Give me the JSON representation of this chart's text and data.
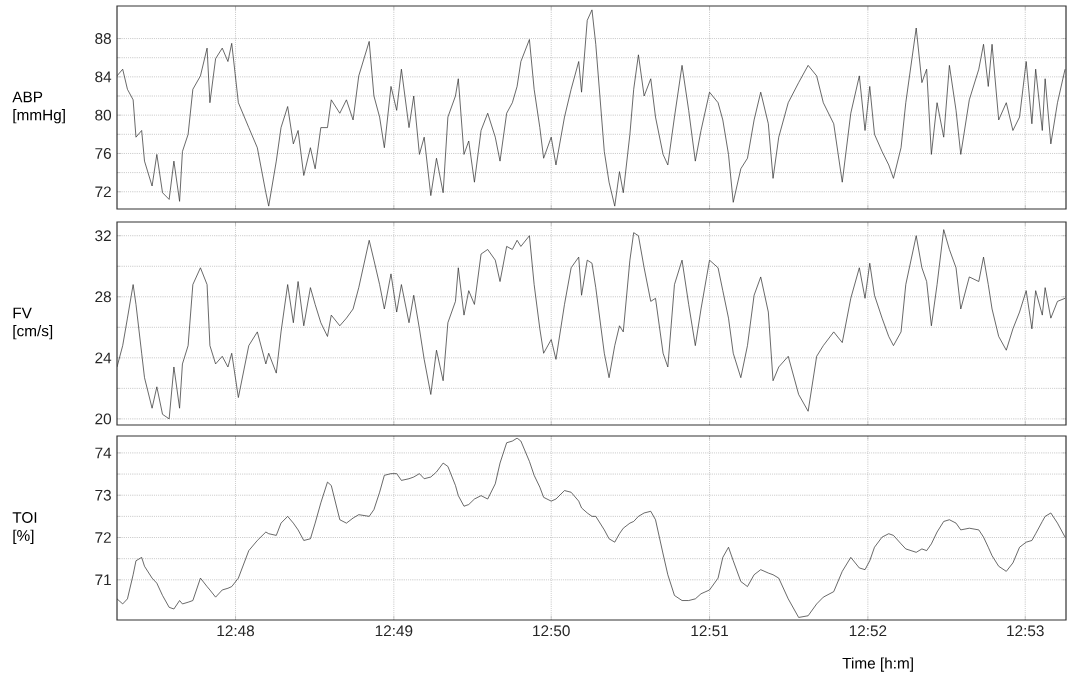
{
  "chart_data": [
    {
      "type": "line",
      "ylabel": "ABP [mmHg]",
      "xlim": [
        12.7875,
        12.8876
      ],
      "ylim": [
        70.2,
        91.4
      ],
      "yticks": [
        72,
        76,
        80,
        84,
        88
      ],
      "xticks": [
        {
          "value": 12.8,
          "label": null
        },
        {
          "value": 12.8167,
          "label": null
        },
        {
          "value": 12.8333,
          "label": null
        },
        {
          "value": 12.85,
          "label": null
        },
        {
          "value": 12.8667,
          "label": null
        },
        {
          "value": 12.8833,
          "label": null
        }
      ],
      "tick_labels": "y",
      "grid": true,
      "x": [
        12.7875,
        12.7881,
        12.7886,
        12.7892,
        12.7895,
        12.7901,
        12.7904,
        12.7912,
        12.7917,
        12.7923,
        12.793,
        12.7935,
        12.7941,
        12.7944,
        12.795,
        12.7955,
        12.7963,
        12.797,
        12.7973,
        12.7979,
        12.7986,
        12.7992,
        12.7996,
        12.8003,
        12.8014,
        12.8023,
        12.8032,
        12.8035,
        12.8043,
        12.8048,
        12.8055,
        12.8061,
        12.8066,
        12.8072,
        12.8079,
        12.8084,
        12.809,
        12.8097,
        12.8101,
        12.811,
        12.8117,
        12.8124,
        12.813,
        12.8141,
        12.8146,
        12.8152,
        12.8157,
        12.8164,
        12.817,
        12.8175,
        12.8183,
        12.8188,
        12.8194,
        12.8199,
        12.8206,
        12.8212,
        12.8219,
        12.8224,
        12.8232,
        12.8235,
        12.8241,
        12.8246,
        12.8252,
        12.8259,
        12.8266,
        12.8274,
        12.8279,
        12.8286,
        12.8292,
        12.8297,
        12.8301,
        12.831,
        12.8315,
        12.8321,
        12.8325,
        12.8333,
        12.8338,
        12.8347,
        12.8354,
        12.8362,
        12.8365,
        12.8371,
        12.8376,
        12.838,
        12.8389,
        12.8394,
        12.84,
        12.8405,
        12.8409,
        12.8416,
        12.842,
        12.8425,
        12.8431,
        12.8438,
        12.8443,
        12.8451,
        12.8456,
        12.8463,
        12.8471,
        12.8478,
        12.8485,
        12.8491,
        12.85,
        12.8509,
        12.8514,
        12.852,
        12.8525,
        12.8533,
        12.854,
        12.8547,
        12.8554,
        12.8562,
        12.8567,
        12.8573,
        12.8583,
        12.8594,
        12.8604,
        12.8613,
        12.862,
        12.8631,
        12.864,
        12.8649,
        12.8658,
        12.8664,
        12.8669,
        12.8674,
        12.8682,
        12.8689,
        12.8694,
        12.8702,
        12.8707,
        12.8718,
        12.8724,
        12.8729,
        12.8734,
        12.874,
        12.8747,
        12.8753,
        12.876,
        12.8765,
        12.8774,
        12.8784,
        12.8789,
        12.8794,
        12.8798,
        12.8805,
        12.8813,
        12.882,
        12.8827,
        12.8834,
        12.884,
        12.8844,
        12.8851,
        12.8854,
        12.886,
        12.8867,
        12.8875
      ],
      "series": [
        {
          "color": "#333333",
          "values": [
            84.1,
            84.8,
            82.7,
            81.6,
            77.7,
            78.4,
            75.2,
            72.6,
            75.9,
            71.9,
            71.2,
            75.2,
            71,
            76.2,
            78,
            82.7,
            84.1,
            87,
            81.3,
            85.9,
            87,
            85.6,
            87.5,
            81.3,
            78.7,
            76.6,
            71.9,
            70.5,
            75.2,
            78.7,
            80.9,
            77,
            78.4,
            73.7,
            76.6,
            74.4,
            78.7,
            78.7,
            81.6,
            80.2,
            81.6,
            79.5,
            84.1,
            87.7,
            82,
            79.8,
            76.6,
            83,
            80.5,
            84.8,
            78.7,
            82,
            75.9,
            77.7,
            71.6,
            75.5,
            71.9,
            79.8,
            82,
            83.8,
            75.9,
            77.3,
            73,
            78.4,
            80.2,
            77.7,
            75.2,
            80.2,
            81.3,
            83,
            85.6,
            87.9,
            82.7,
            78.7,
            75.5,
            77.7,
            74.8,
            79.8,
            82.7,
            85.6,
            82.4,
            89.9,
            91,
            87.4,
            76.2,
            73,
            70.5,
            74.1,
            71.9,
            78,
            82.7,
            86.3,
            82,
            83.8,
            79.8,
            75.9,
            74.8,
            79.8,
            85.2,
            80.5,
            75.2,
            78.4,
            82.4,
            81.3,
            79.5,
            75.9,
            70.9,
            74.4,
            75.5,
            79.5,
            82.4,
            79.1,
            73.4,
            77.7,
            81.3,
            83.4,
            85.2,
            84.1,
            81.3,
            79.1,
            73,
            80.2,
            84.1,
            78.4,
            83,
            78,
            76.2,
            74.8,
            73.4,
            76.6,
            81.3,
            89.1,
            83.4,
            84.8,
            75.9,
            81.3,
            77.7,
            85.2,
            80.5,
            75.9,
            81.6,
            84.8,
            87.4,
            83,
            87.4,
            79.5,
            81.3,
            78.4,
            79.8,
            85.6,
            79.1,
            84.8,
            78.4,
            83.8,
            77,
            81.3,
            84.8
          ]
        }
      ]
    },
    {
      "type": "line",
      "ylabel": "FV [cm/s]",
      "xlim": [
        12.7875,
        12.8876
      ],
      "ylim": [
        19.6,
        32.9
      ],
      "yticks": [
        20,
        24,
        28,
        32
      ],
      "xticks": [
        {
          "value": 12.8,
          "label": null
        },
        {
          "value": 12.8167,
          "label": null
        },
        {
          "value": 12.8333,
          "label": null
        },
        {
          "value": 12.85,
          "label": null
        },
        {
          "value": 12.8667,
          "label": null
        },
        {
          "value": 12.8833,
          "label": null
        }
      ],
      "tick_labels": "y",
      "grid": true,
      "x": [
        12.7875,
        12.7881,
        12.7886,
        12.7892,
        12.7895,
        12.7901,
        12.7904,
        12.7912,
        12.7917,
        12.7923,
        12.793,
        12.7935,
        12.7941,
        12.7944,
        12.795,
        12.7955,
        12.7963,
        12.797,
        12.7973,
        12.7979,
        12.7986,
        12.7992,
        12.7996,
        12.8003,
        12.8014,
        12.8023,
        12.8032,
        12.8035,
        12.8043,
        12.8048,
        12.8055,
        12.8061,
        12.8066,
        12.8072,
        12.8079,
        12.8084,
        12.809,
        12.8097,
        12.8101,
        12.811,
        12.8117,
        12.8124,
        12.813,
        12.8141,
        12.8146,
        12.8152,
        12.8157,
        12.8164,
        12.817,
        12.8175,
        12.8183,
        12.8188,
        12.8194,
        12.8199,
        12.8206,
        12.8212,
        12.8219,
        12.8224,
        12.8232,
        12.8235,
        12.8241,
        12.8246,
        12.8252,
        12.8259,
        12.8266,
        12.8274,
        12.8279,
        12.8286,
        12.8292,
        12.8297,
        12.8301,
        12.831,
        12.8315,
        12.8321,
        12.8325,
        12.8333,
        12.8338,
        12.8347,
        12.8354,
        12.8362,
        12.8365,
        12.8371,
        12.8376,
        12.838,
        12.8389,
        12.8394,
        12.84,
        12.8405,
        12.8409,
        12.8416,
        12.842,
        12.8425,
        12.8431,
        12.8438,
        12.8443,
        12.8451,
        12.8456,
        12.8463,
        12.8471,
        12.8478,
        12.8485,
        12.8491,
        12.85,
        12.8509,
        12.8514,
        12.852,
        12.8525,
        12.8533,
        12.854,
        12.8547,
        12.8554,
        12.8562,
        12.8567,
        12.8573,
        12.8583,
        12.8594,
        12.8604,
        12.8613,
        12.862,
        12.8631,
        12.864,
        12.8649,
        12.8658,
        12.8664,
        12.8669,
        12.8674,
        12.8682,
        12.8689,
        12.8694,
        12.8702,
        12.8707,
        12.8718,
        12.8724,
        12.8729,
        12.8734,
        12.874,
        12.8747,
        12.8753,
        12.876,
        12.8765,
        12.8774,
        12.8784,
        12.8789,
        12.8794,
        12.8798,
        12.8805,
        12.8813,
        12.882,
        12.8827,
        12.8834,
        12.884,
        12.8844,
        12.8851,
        12.8854,
        12.886,
        12.8867,
        12.8875
      ],
      "series": [
        {
          "color": "#333333",
          "values": [
            23.4,
            24.8,
            26.6,
            28.8,
            27.5,
            24.3,
            22.7,
            20.7,
            22.1,
            20.3,
            20.0,
            23.4,
            20.7,
            23.6,
            24.8,
            28.8,
            29.9,
            28.8,
            24.8,
            23.6,
            24.1,
            23.4,
            24.3,
            21.4,
            24.8,
            25.7,
            23.6,
            24.3,
            23,
            25.7,
            28.8,
            26.3,
            29,
            26.1,
            28.6,
            27.5,
            26.3,
            25.4,
            26.8,
            26.1,
            26.6,
            27.2,
            28.6,
            31.7,
            30.4,
            28.8,
            27.2,
            29.5,
            27,
            28.8,
            26.3,
            28.1,
            25.9,
            23.9,
            21.6,
            24.5,
            22.5,
            26.3,
            27.7,
            29.9,
            26.8,
            28.4,
            27.5,
            30.8,
            31.1,
            30.4,
            29,
            31.3,
            31.1,
            31.7,
            31.3,
            32,
            28.8,
            25.9,
            24.3,
            25.2,
            23.9,
            27.5,
            29.9,
            30.6,
            28.1,
            30.4,
            30.2,
            28.6,
            24.3,
            22.7,
            24.8,
            26.1,
            25.7,
            30.4,
            32.2,
            32,
            29.9,
            27.7,
            27.9,
            24.3,
            23.4,
            28.8,
            30.4,
            27.5,
            24.8,
            27.2,
            30.4,
            29.9,
            28.4,
            26.6,
            24.3,
            22.7,
            24.8,
            28.1,
            29.3,
            27,
            22.5,
            23.4,
            24.1,
            21.6,
            20.5,
            24.1,
            24.8,
            25.7,
            25,
            27.9,
            29.9,
            27.9,
            30.2,
            28.1,
            26.6,
            25.4,
            24.8,
            25.7,
            28.8,
            32,
            29.9,
            29,
            26.1,
            28.8,
            32.4,
            31.1,
            29.9,
            27.2,
            29.3,
            29,
            30.6,
            28.8,
            27.2,
            25.4,
            24.5,
            25.9,
            27,
            28.4,
            25.9,
            28.4,
            26.8,
            28.6,
            26.6,
            27.7,
            27.9
          ]
        }
      ]
    },
    {
      "type": "line",
      "ylabel": "TOI [%]",
      "xlabel": "Time [h:m]",
      "xlim": [
        12.7875,
        12.8876
      ],
      "ylim": [
        70.05,
        74.4
      ],
      "yticks": [
        71,
        72,
        73,
        74
      ],
      "xticks": [
        {
          "value": 12.8,
          "label": "12:48"
        },
        {
          "value": 12.8167,
          "label": "12:49"
        },
        {
          "value": 12.8333,
          "label": "12:50"
        },
        {
          "value": 12.85,
          "label": "12:51"
        },
        {
          "value": 12.8667,
          "label": "12:52"
        },
        {
          "value": 12.8833,
          "label": "12:53"
        }
      ],
      "grid": true,
      "x": [
        12.7875,
        12.7881,
        12.7886,
        12.7892,
        12.7895,
        12.7901,
        12.7904,
        12.7912,
        12.7917,
        12.7923,
        12.793,
        12.7935,
        12.7941,
        12.7944,
        12.795,
        12.7955,
        12.7963,
        12.797,
        12.7973,
        12.7979,
        12.7986,
        12.7992,
        12.7996,
        12.8003,
        12.8014,
        12.8023,
        12.8032,
        12.8035,
        12.8043,
        12.8048,
        12.8055,
        12.8061,
        12.8066,
        12.8072,
        12.8079,
        12.8084,
        12.809,
        12.8097,
        12.8101,
        12.811,
        12.8117,
        12.8124,
        12.813,
        12.8141,
        12.8146,
        12.8152,
        12.8157,
        12.8164,
        12.817,
        12.8175,
        12.8183,
        12.8188,
        12.8194,
        12.8199,
        12.8206,
        12.8212,
        12.8219,
        12.8224,
        12.8232,
        12.8235,
        12.8241,
        12.8246,
        12.8252,
        12.8259,
        12.8266,
        12.8274,
        12.8279,
        12.8286,
        12.8292,
        12.8297,
        12.8301,
        12.831,
        12.8315,
        12.8321,
        12.8325,
        12.8333,
        12.8338,
        12.8347,
        12.8354,
        12.8362,
        12.8365,
        12.8371,
        12.8376,
        12.838,
        12.8389,
        12.8394,
        12.84,
        12.8405,
        12.8409,
        12.8416,
        12.842,
        12.8425,
        12.8431,
        12.8438,
        12.8443,
        12.8451,
        12.8456,
        12.8463,
        12.8471,
        12.8478,
        12.8485,
        12.8491,
        12.85,
        12.8509,
        12.8514,
        12.852,
        12.8525,
        12.8533,
        12.854,
        12.8547,
        12.8554,
        12.8562,
        12.8567,
        12.8573,
        12.8583,
        12.8594,
        12.8604,
        12.8613,
        12.862,
        12.8631,
        12.864,
        12.8649,
        12.8658,
        12.8664,
        12.8669,
        12.8674,
        12.8682,
        12.8689,
        12.8694,
        12.8702,
        12.8707,
        12.8718,
        12.8724,
        12.8729,
        12.8734,
        12.874,
        12.8747,
        12.8753,
        12.876,
        12.8765,
        12.8774,
        12.8784,
        12.8789,
        12.8794,
        12.8798,
        12.8805,
        12.8813,
        12.882,
        12.8827,
        12.8834,
        12.884,
        12.8844,
        12.8851,
        12.8854,
        12.886,
        12.8867,
        12.8875
      ],
      "series": [
        {
          "color": "#333333",
          "values": [
            70.55,
            70.43,
            70.55,
            71.12,
            71.45,
            71.53,
            71.32,
            71.04,
            70.92,
            70.63,
            70.35,
            70.31,
            70.51,
            70.43,
            70.47,
            70.51,
            71.04,
            70.84,
            70.76,
            70.59,
            70.76,
            70.8,
            70.84,
            71.04,
            71.69,
            71.93,
            72.13,
            72.09,
            72.05,
            72.34,
            72.5,
            72.34,
            72.18,
            71.93,
            71.97,
            72.34,
            72.82,
            73.31,
            73.23,
            72.42,
            72.34,
            72.46,
            72.54,
            72.5,
            72.66,
            73.07,
            73.47,
            73.51,
            73.51,
            73.35,
            73.39,
            73.43,
            73.51,
            73.39,
            73.43,
            73.55,
            73.76,
            73.68,
            73.23,
            72.99,
            72.74,
            72.78,
            72.91,
            72.99,
            72.91,
            73.27,
            73.76,
            74.24,
            74.28,
            74.35,
            74.28,
            73.8,
            73.47,
            73.19,
            72.95,
            72.86,
            72.91,
            73.11,
            73.07,
            72.86,
            72.7,
            72.58,
            72.5,
            72.5,
            72.18,
            71.97,
            71.89,
            72.09,
            72.22,
            72.34,
            72.38,
            72.5,
            72.58,
            72.62,
            72.42,
            71.61,
            71.12,
            70.63,
            70.51,
            70.51,
            70.55,
            70.67,
            70.76,
            71.04,
            71.53,
            71.77,
            71.45,
            70.96,
            70.84,
            71.12,
            71.24,
            71.16,
            71.12,
            71.04,
            70.55,
            70.11,
            70.15,
            70.43,
            70.59,
            70.72,
            71.2,
            71.53,
            71.28,
            71.24,
            71.45,
            71.77,
            72.01,
            72.09,
            72.05,
            71.85,
            71.73,
            71.65,
            71.73,
            71.69,
            71.85,
            72.13,
            72.38,
            72.42,
            72.34,
            72.18,
            72.22,
            72.18,
            72.01,
            71.77,
            71.57,
            71.32,
            71.2,
            71.4,
            71.77,
            71.89,
            71.93,
            72.09,
            72.38,
            72.5,
            72.58,
            72.34,
            72.01
          ]
        }
      ]
    }
  ]
}
